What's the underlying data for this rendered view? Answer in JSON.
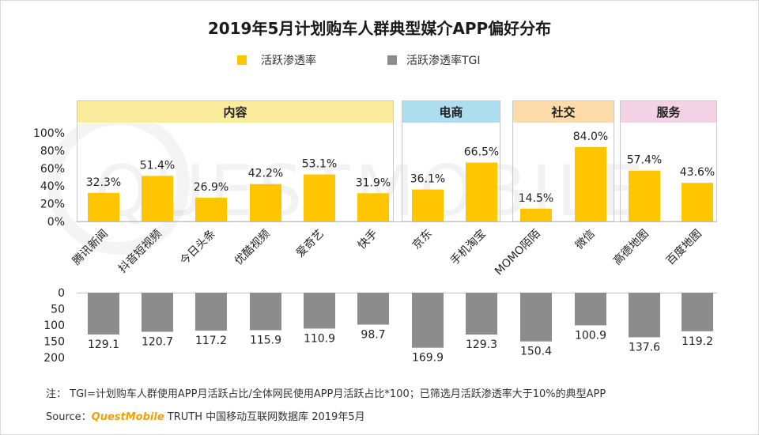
{
  "title": "2019年5月计划购车人群典型媒介APP偏好分布",
  "legend": [
    {
      "label": "活跃渗透率",
      "color": "#ffc600"
    },
    {
      "label": "活跃渗透率TGI",
      "color": "#8c8c8c"
    }
  ],
  "watermark": "QUESTMOBILE",
  "chart_data": {
    "type": "bar",
    "categories": [
      "腾讯新闻",
      "抖音短视频",
      "今日头条",
      "优酷视频",
      "爱奇艺",
      "快手",
      "京东",
      "手机淘宝",
      "MOMO陌陌",
      "微信",
      "高德地图",
      "百度地图"
    ],
    "groups": [
      {
        "name": "内容",
        "start": 0,
        "count": 6,
        "color": "#fbeb9c"
      },
      {
        "name": "电商",
        "start": 6,
        "count": 2,
        "color": "#acdef0"
      },
      {
        "name": "社交",
        "start": 8,
        "count": 2,
        "color": "#fddba8"
      },
      {
        "name": "服务",
        "start": 10,
        "count": 2,
        "color": "#f3d2e6"
      }
    ],
    "series": [
      {
        "name": "活跃渗透率",
        "color": "#ffc600",
        "values": [
          32.3,
          51.4,
          26.9,
          42.2,
          53.1,
          31.9,
          36.1,
          66.5,
          14.5,
          84.0,
          57.4,
          43.6
        ],
        "labels": [
          "32.3%",
          "51.4%",
          "26.9%",
          "42.2%",
          "53.1%",
          "31.9%",
          "36.1%",
          "66.5%",
          "14.5%",
          "84.0%",
          "57.4%",
          "43.6%"
        ]
      },
      {
        "name": "活跃渗透率TGI",
        "color": "#8c8c8c",
        "values": [
          129.1,
          120.7,
          117.2,
          115.9,
          110.9,
          98.7,
          169.9,
          129.3,
          150.4,
          100.9,
          137.6,
          119.2
        ],
        "labels": [
          "129.1",
          "120.7",
          "117.2",
          "115.9",
          "110.9",
          "98.7",
          "169.9",
          "129.3",
          "150.4",
          "100.9",
          "137.6",
          "119.2"
        ]
      }
    ],
    "top_axis": {
      "ylim": [
        0,
        100
      ],
      "ticks": [
        "0%",
        "20%",
        "40%",
        "60%",
        "80%",
        "100%"
      ]
    },
    "bottom_axis": {
      "ylim": [
        0,
        200
      ],
      "reversed": true,
      "ticks": [
        "0",
        "50",
        "100",
        "150",
        "200"
      ]
    }
  },
  "footnote": "注： TGI=计划购车人群使用APP月活跃占比/全体网民使用APP月活跃占比*100；已筛选月活跃渗透率大于10%的典型APP",
  "source": {
    "prefix": "Source：",
    "brand": "QuestMobile",
    "text": " TRUTH 中国移动互联网数据库 2019年5月"
  }
}
